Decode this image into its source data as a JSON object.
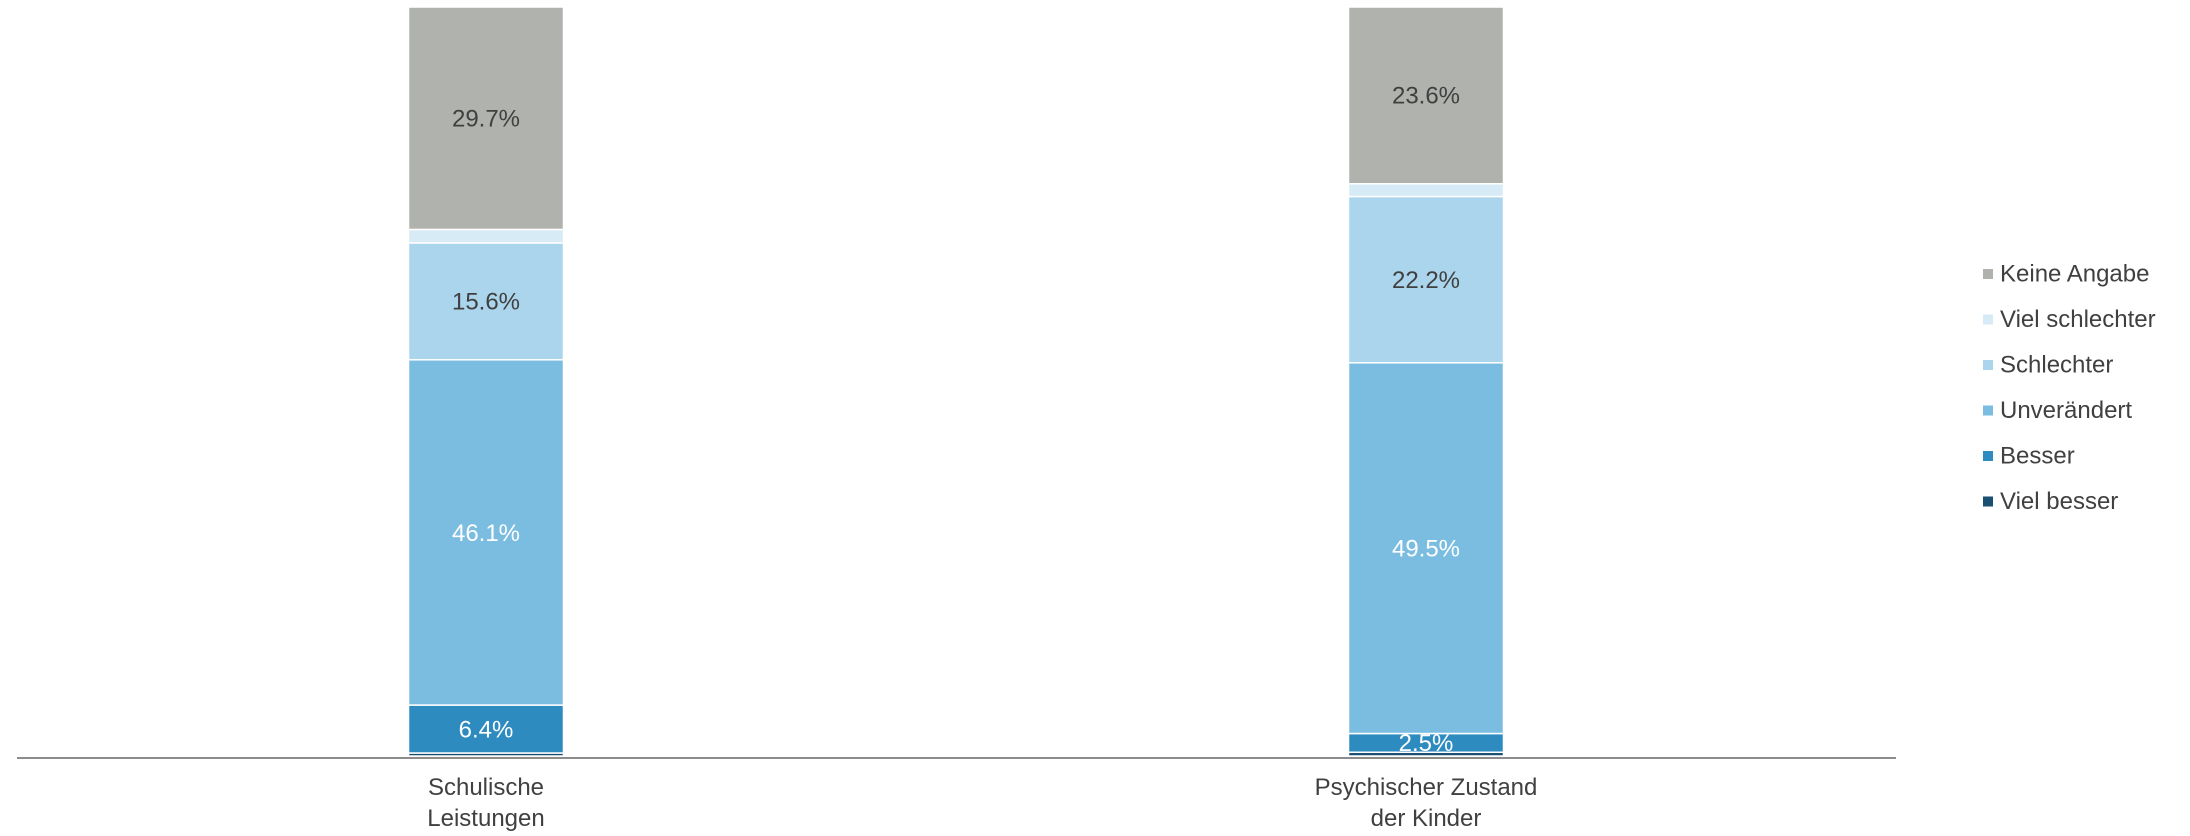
{
  "chart_data": {
    "type": "stacked_bar",
    "categories": [
      "Schulische\nLeistungen",
      "Psychischer Zustand\nder Kinder"
    ],
    "ylim": [
      0,
      100
    ],
    "series": [
      {
        "name": "Viel besser",
        "color": "#1b4f72",
        "values": [
          0.4,
          0.5
        ],
        "value_labels": [
          null,
          null
        ]
      },
      {
        "name": "Besser",
        "color": "#2e8bc0",
        "values": [
          6.4,
          2.5
        ],
        "value_labels": [
          "6.4%",
          "2.5%"
        ]
      },
      {
        "name": "Unverändert",
        "color": "#7bbde0",
        "values": [
          46.1,
          49.5
        ],
        "value_labels": [
          "46.1%",
          "49.5%"
        ]
      },
      {
        "name": "Schlechter",
        "color": "#aad5ec",
        "values": [
          15.6,
          22.2
        ],
        "value_labels": [
          "15.6%",
          "22.2%"
        ]
      },
      {
        "name": "Viel schlechter",
        "color": "#d6ebf6",
        "values": [
          1.8,
          1.7
        ],
        "value_labels": [
          null,
          null
        ]
      },
      {
        "name": "Keine Angabe",
        "color": "#b0b2ae",
        "values": [
          29.7,
          23.6
        ],
        "value_labels": [
          "29.7%",
          "23.6%"
        ]
      }
    ]
  }
}
